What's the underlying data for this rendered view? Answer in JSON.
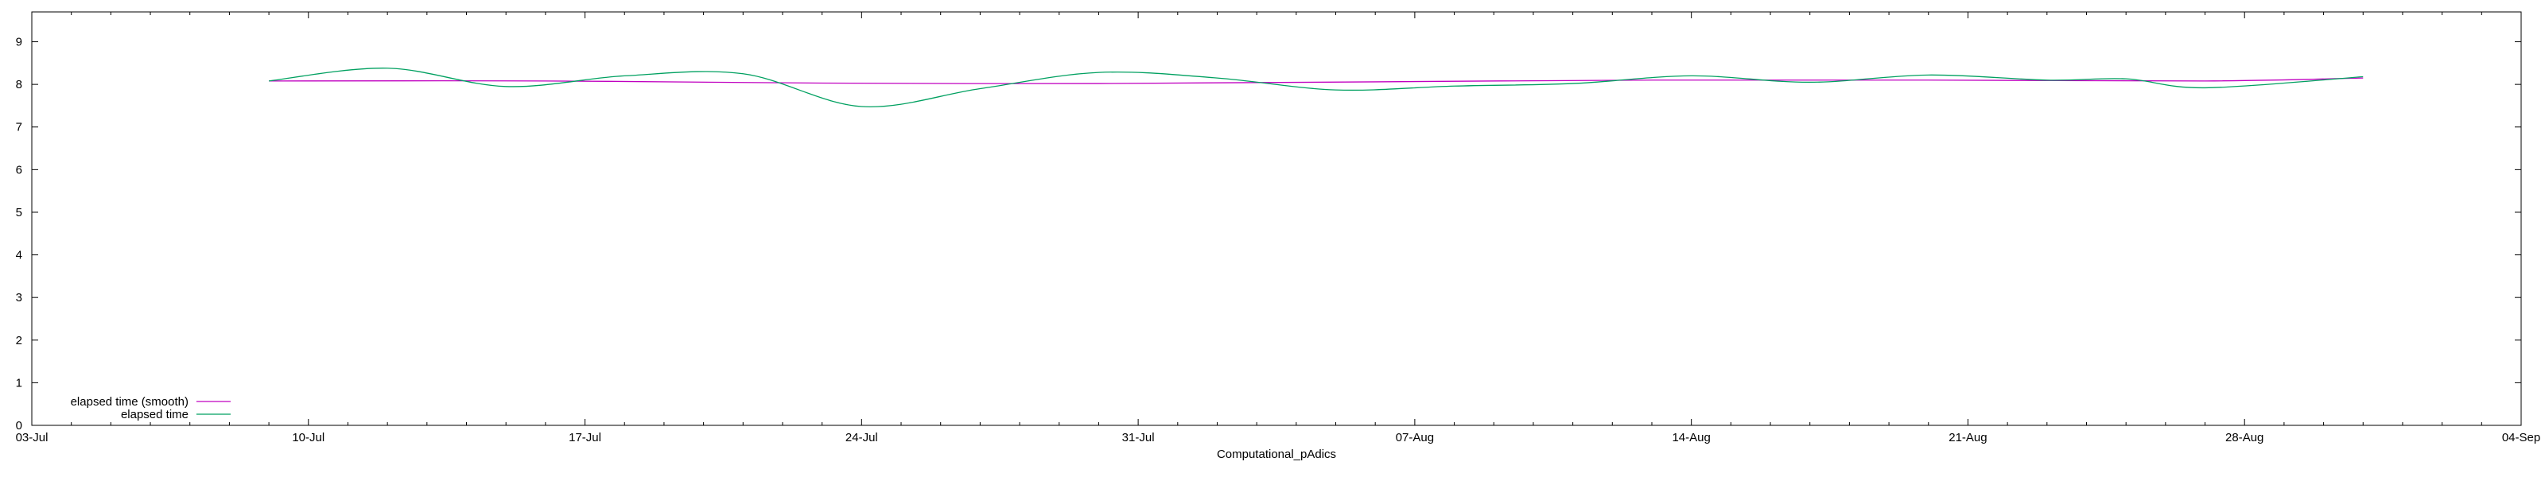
{
  "chart_data": {
    "type": "line",
    "title": "",
    "xlabel": "Computational_pAdics",
    "ylabel": "",
    "x_tick_labels": [
      "03-Jul",
      "10-Jul",
      "17-Jul",
      "24-Jul",
      "31-Jul",
      "07-Aug",
      "14-Aug",
      "21-Aug",
      "28-Aug",
      "04-Sep"
    ],
    "x_range": [
      "2023-07-03",
      "2023-09-04"
    ],
    "y_ticks": [
      0,
      1,
      2,
      3,
      4,
      5,
      6,
      7,
      8,
      9
    ],
    "ylim": [
      0,
      9.7
    ],
    "grid": false,
    "legend_position": "bottom-left",
    "series": [
      {
        "name": "elapsed time (smooth)",
        "color": "#c000c0",
        "style": "line",
        "points": [
          [
            "2023-07-09",
            8.08
          ],
          [
            "2023-07-16",
            8.08
          ],
          [
            "2023-07-23",
            8.03
          ],
          [
            "2023-07-30",
            8.02
          ],
          [
            "2023-08-06",
            8.06
          ],
          [
            "2023-08-13",
            8.1
          ],
          [
            "2023-08-20",
            8.1
          ],
          [
            "2023-08-27",
            8.08
          ],
          [
            "2023-08-31",
            8.15
          ]
        ]
      },
      {
        "name": "elapsed time",
        "color": "#00a060",
        "style": "line",
        "points": [
          [
            "2023-07-09",
            8.08
          ],
          [
            "2023-07-12",
            8.38
          ],
          [
            "2023-07-15",
            7.95
          ],
          [
            "2023-07-18",
            8.2
          ],
          [
            "2023-07-21",
            8.25
          ],
          [
            "2023-07-24",
            7.48
          ],
          [
            "2023-07-27",
            7.9
          ],
          [
            "2023-07-30",
            8.28
          ],
          [
            "2023-08-02",
            8.15
          ],
          [
            "2023-08-05",
            7.87
          ],
          [
            "2023-08-08",
            7.96
          ],
          [
            "2023-08-11",
            8.02
          ],
          [
            "2023-08-14",
            8.2
          ],
          [
            "2023-08-17",
            8.05
          ],
          [
            "2023-08-20",
            8.22
          ],
          [
            "2023-08-23",
            8.1
          ],
          [
            "2023-08-25",
            8.13
          ],
          [
            "2023-08-27",
            7.92
          ],
          [
            "2023-08-31",
            8.18
          ]
        ]
      }
    ]
  }
}
